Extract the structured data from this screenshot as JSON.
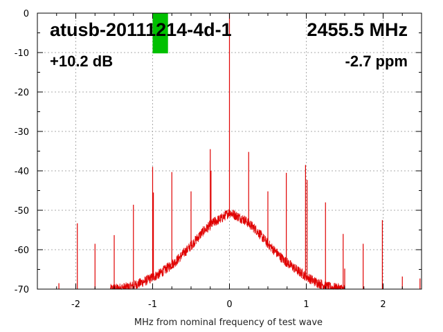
{
  "chart_data": {
    "type": "line",
    "title": "atusb-20111214-4d-1",
    "frequency_label": "2455.5 MHz",
    "gain_label": "+10.2 dB",
    "ppm_label": "-2.7 ppm",
    "xlabel": "MHz from nominal frequency of test wave",
    "ylabel": "",
    "xlim": [
      -2.5,
      2.5
    ],
    "ylim": [
      -70,
      0
    ],
    "xticks": [
      -2,
      -1,
      0,
      1,
      2
    ],
    "yticks": [
      0,
      -10,
      -20,
      -30,
      -40,
      -50,
      -60,
      -70
    ],
    "grid": true,
    "series_color": "#e00000",
    "marker": {
      "x_from": -1.0,
      "x_to": -0.8,
      "y_from": 0,
      "y_to": -10.2,
      "color": "#00c000"
    },
    "noise_envelope": [
      [
        -1.55,
        -70
      ],
      [
        -1.3,
        -69.5
      ],
      [
        -1.1,
        -68
      ],
      [
        -0.9,
        -66
      ],
      [
        -0.7,
        -63
      ],
      [
        -0.5,
        -59
      ],
      [
        -0.35,
        -55.5
      ],
      [
        -0.2,
        -53
      ],
      [
        -0.1,
        -52
      ],
      [
        0,
        -50.5
      ],
      [
        0.1,
        -51.5
      ],
      [
        0.2,
        -52.5
      ],
      [
        0.35,
        -55
      ],
      [
        0.5,
        -58.5
      ],
      [
        0.7,
        -62.5
      ],
      [
        0.9,
        -65.5
      ],
      [
        1.1,
        -68
      ],
      [
        1.3,
        -69.5
      ],
      [
        1.5,
        -70
      ]
    ],
    "spurs": [
      {
        "x": -2.22,
        "y": -68.5
      },
      {
        "x": -1.98,
        "y": -53.3
      },
      {
        "x": -1.75,
        "y": -58.5
      },
      {
        "x": -1.5,
        "y": -56.3
      },
      {
        "x": -1.25,
        "y": -48.6
      },
      {
        "x": -1.0,
        "y": -39.0
      },
      {
        "x": -0.99,
        "y": -45.5
      },
      {
        "x": -0.75,
        "y": -40.3
      },
      {
        "x": -0.5,
        "y": -45.2
      },
      {
        "x": -0.25,
        "y": -34.5
      },
      {
        "x": -0.24,
        "y": -40.0
      },
      {
        "x": 0.0,
        "y": 0.0
      },
      {
        "x": 0.25,
        "y": -35.2
      },
      {
        "x": 0.5,
        "y": -45.2
      },
      {
        "x": 0.74,
        "y": -40.5
      },
      {
        "x": 0.99,
        "y": -38.5
      },
      {
        "x": 1.01,
        "y": -42.3
      },
      {
        "x": 1.25,
        "y": -48.0
      },
      {
        "x": 1.48,
        "y": -56.0
      },
      {
        "x": 1.5,
        "y": -64.8
      },
      {
        "x": 1.74,
        "y": -58.5
      },
      {
        "x": 1.99,
        "y": -52.5
      },
      {
        "x": 2.25,
        "y": -66.8
      },
      {
        "x": 2.48,
        "y": -67.3
      }
    ]
  }
}
